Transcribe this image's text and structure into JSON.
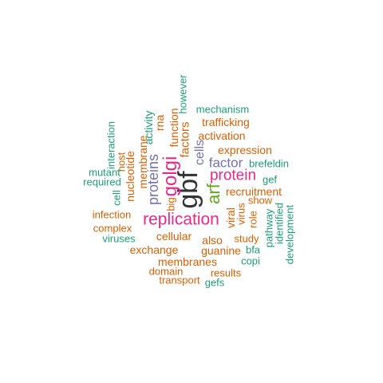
{
  "colors": {
    "green": "#1b9e77",
    "orange": "#d95f02",
    "purple": "#7570b3",
    "magenta": "#e7298a",
    "lime": "#66a61e",
    "dark": "#333333"
  },
  "words": [
    {
      "text": "gbf",
      "color": "dark"
    },
    {
      "text": "replication",
      "color": "magenta"
    },
    {
      "text": "golgi",
      "color": "magenta"
    },
    {
      "text": "arf",
      "color": "lime"
    },
    {
      "text": "protein",
      "color": "magenta"
    },
    {
      "text": "proteins",
      "color": "purple"
    },
    {
      "text": "factor",
      "color": "purple"
    },
    {
      "text": "cells",
      "color": "purple"
    },
    {
      "text": "factors",
      "color": "orange"
    },
    {
      "text": "function",
      "color": "orange"
    },
    {
      "text": "rna",
      "color": "orange"
    },
    {
      "text": "big",
      "color": "orange"
    },
    {
      "text": "activity",
      "color": "green"
    },
    {
      "text": "membrane",
      "color": "orange"
    },
    {
      "text": "nucleotide",
      "color": "orange"
    },
    {
      "text": "host",
      "color": "orange"
    },
    {
      "text": "interaction",
      "color": "green"
    },
    {
      "text": "however",
      "color": "green"
    },
    {
      "text": "mechanism",
      "color": "green"
    },
    {
      "text": "trafficking",
      "color": "orange"
    },
    {
      "text": "activation",
      "color": "orange"
    },
    {
      "text": "expression",
      "color": "orange"
    },
    {
      "text": "brefeldin",
      "color": "green"
    },
    {
      "text": "gef",
      "color": "green"
    },
    {
      "text": "recruitment",
      "color": "orange"
    },
    {
      "text": "show",
      "color": "orange"
    },
    {
      "text": "viral",
      "color": "orange"
    },
    {
      "text": "virus",
      "color": "orange"
    },
    {
      "text": "role",
      "color": "orange"
    },
    {
      "text": "pathway",
      "color": "green"
    },
    {
      "text": "identified",
      "color": "green"
    },
    {
      "text": "development",
      "color": "green"
    },
    {
      "text": "mutant",
      "color": "green"
    },
    {
      "text": "required",
      "color": "green"
    },
    {
      "text": "cell",
      "color": "green"
    },
    {
      "text": "infection",
      "color": "orange"
    },
    {
      "text": "complex",
      "color": "orange"
    },
    {
      "text": "viruses",
      "color": "green"
    },
    {
      "text": "cellular",
      "color": "orange"
    },
    {
      "text": "also",
      "color": "orange"
    },
    {
      "text": "study",
      "color": "orange"
    },
    {
      "text": "exchange",
      "color": "orange"
    },
    {
      "text": "guanine",
      "color": "orange"
    },
    {
      "text": "bfa",
      "color": "green"
    },
    {
      "text": "copi",
      "color": "green"
    },
    {
      "text": "membranes",
      "color": "orange"
    },
    {
      "text": "domain",
      "color": "orange"
    },
    {
      "text": "results",
      "color": "orange"
    },
    {
      "text": "transport",
      "color": "orange"
    },
    {
      "text": "gefs",
      "color": "green"
    }
  ]
}
